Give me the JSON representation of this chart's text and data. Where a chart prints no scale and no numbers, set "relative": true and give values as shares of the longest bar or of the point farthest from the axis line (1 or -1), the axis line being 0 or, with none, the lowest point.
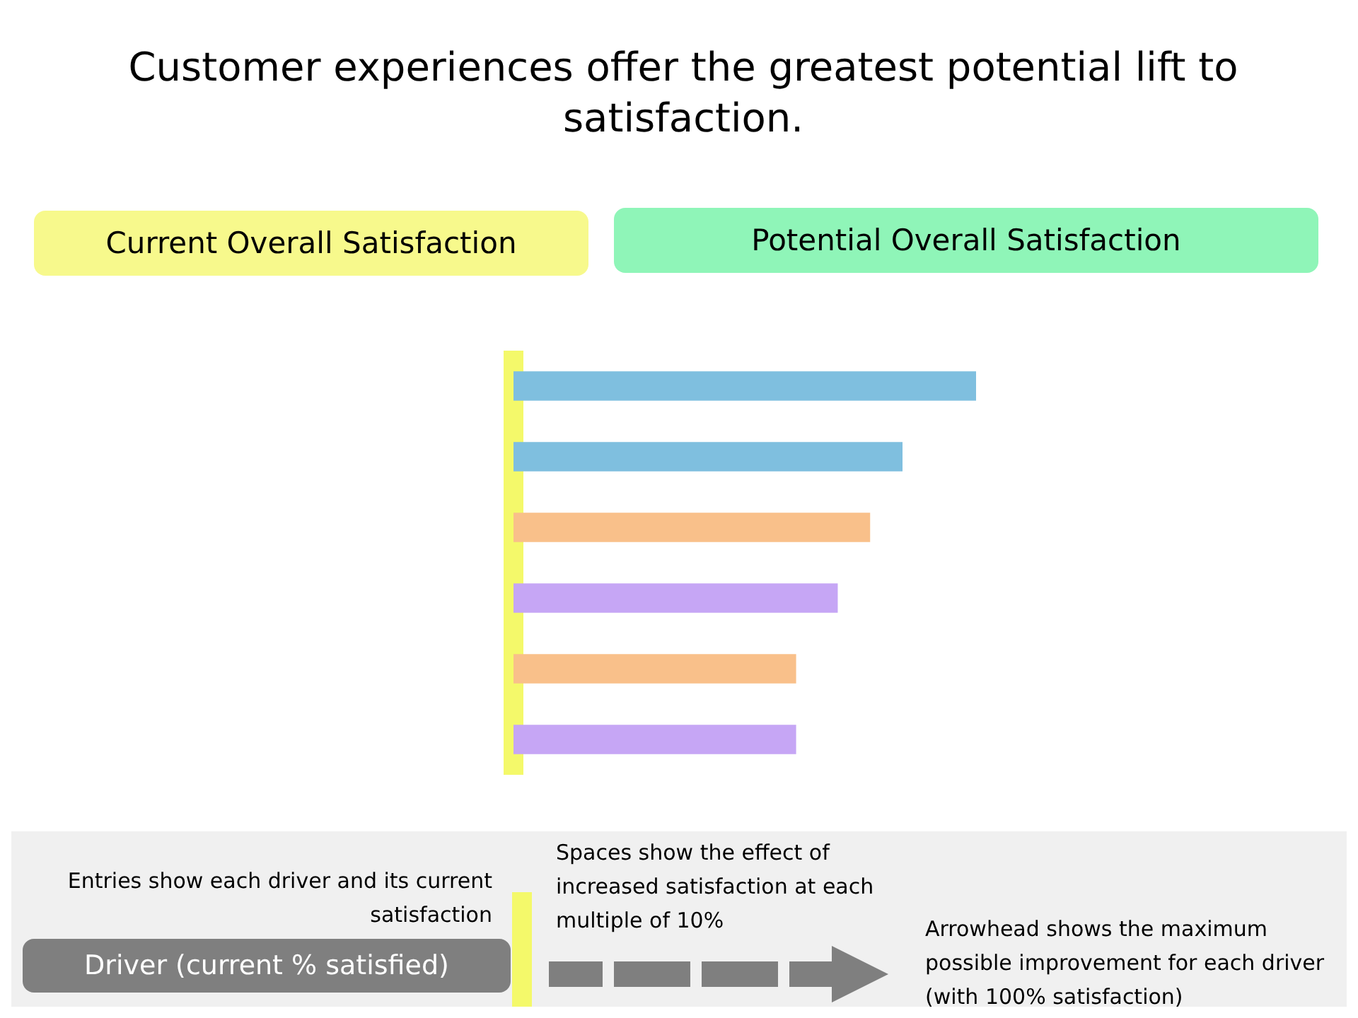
{
  "chart_data": {
    "type": "bar",
    "orientation": "horizontal",
    "relative": true,
    "title": "Customer experiences offer the greatest potential lift to satisfaction.",
    "categories": [
      null,
      null,
      null,
      null,
      null,
      null
    ],
    "values": [
      1,
      0.84,
      0.77,
      0.7,
      0.61,
      0.61
    ],
    "colors": [
      "#7fbfdf",
      "#7fbfdf",
      "#f9c08a",
      "#c6a6f5",
      "#f9c08a",
      "#c6a6f5"
    ],
    "annotations": [
      "Current Overall Satisfaction",
      "Potential Overall Satisfaction",
      "Entries show each driver and its current satisfaction",
      "Driver (current % satisfied)",
      "Spaces show the effect of increased satisfaction at each multiple of 10%",
      "Arrowhead shows the maximum possible improvement for each driver (with 100% satisfaction)"
    ],
    "legend": false
  }
}
